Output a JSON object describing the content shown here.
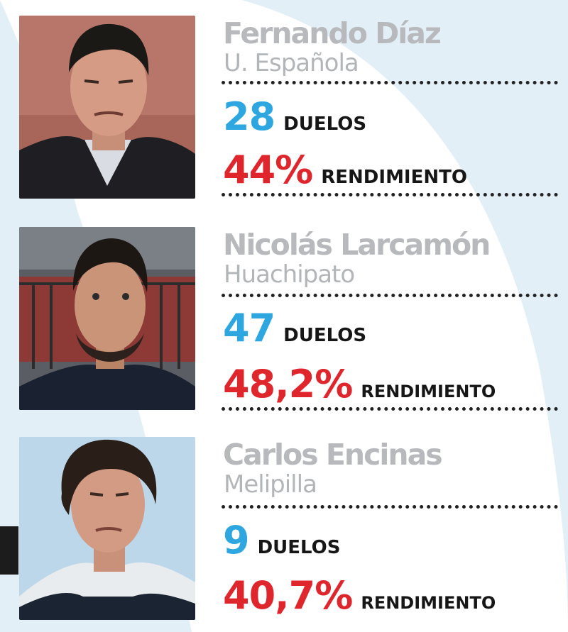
{
  "coaches": [
    {
      "name": "Fernando Díaz",
      "club": "U. Española",
      "duelos_value": "28",
      "duelos_label": "DUELOS",
      "rendimiento_value": "44%",
      "rendimiento_label": "RENDIMIENTO"
    },
    {
      "name": "Nicolás Larcamón",
      "club": "Huachipato",
      "duelos_value": "47",
      "duelos_label": "DUELOS",
      "rendimiento_value": "48,2%",
      "rendimiento_label": "RENDIMIENTO"
    },
    {
      "name": "Carlos Encinas",
      "club": "Melipilla",
      "duelos_value": "9",
      "duelos_label": "DUELOS",
      "rendimiento_value": "40,7%",
      "rendimiento_label": "RENDIMIENTO"
    }
  ],
  "colors": {
    "name_gray": "#b7b9bc",
    "duelos_blue": "#2ea7e0",
    "rendimiento_red": "#e0262d",
    "label_black": "#161616",
    "background_blue": "#e3eff7"
  }
}
